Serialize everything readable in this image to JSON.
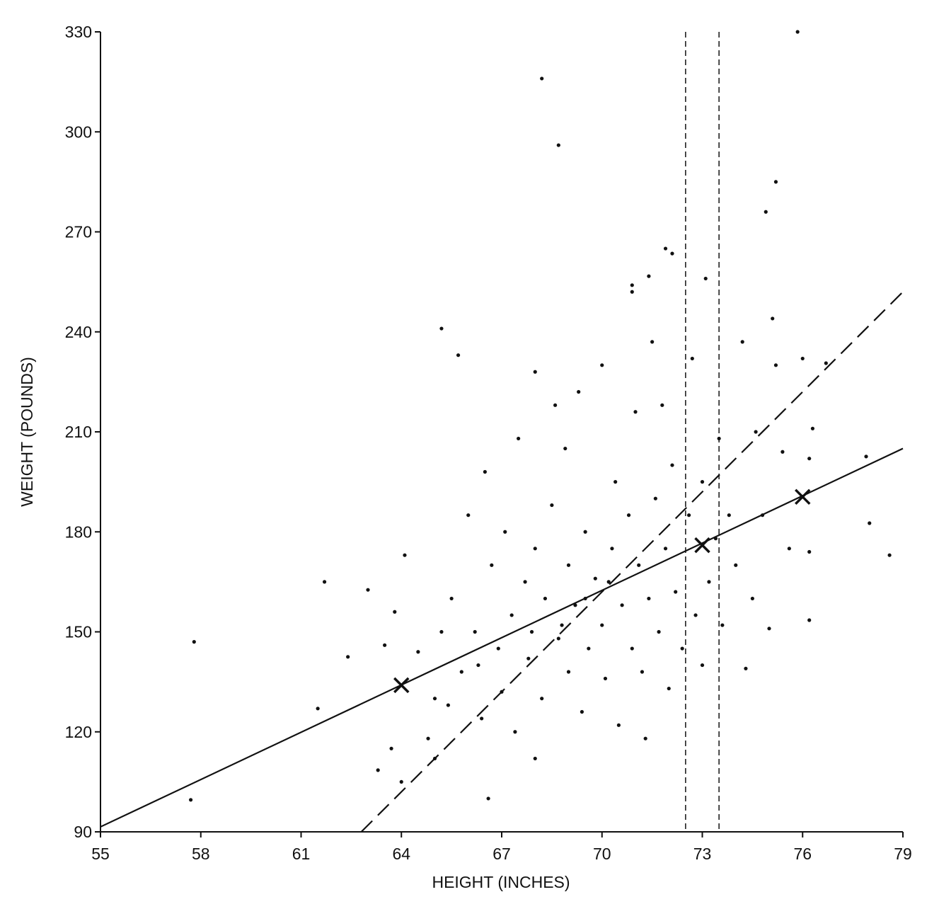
{
  "chart_data": {
    "type": "scatter",
    "xlabel": "HEIGHT (INCHES)",
    "ylabel": "WEIGHT (POUNDS)",
    "xlim": [
      55,
      79
    ],
    "ylim": [
      90,
      330
    ],
    "xticks": [
      55,
      58,
      61,
      64,
      67,
      70,
      73,
      76,
      79
    ],
    "yticks": [
      90,
      120,
      150,
      180,
      210,
      240,
      270,
      300,
      330
    ],
    "color": "#111111",
    "series": [
      {
        "color": "#111111",
        "x": [
          75.85,
          68.2,
          68.7,
          75.2,
          74.9,
          61.7,
          57.8,
          57.7,
          61.5,
          62.4,
          63.0,
          65.2,
          65.7,
          71.9,
          72.1,
          73.1,
          71.4,
          70.9,
          70.9,
          75.1,
          78.6,
          78.0,
          77.9,
          76.7,
          66.6,
          63.3,
          68.0,
          71.3,
          76.2,
          76.2,
          63.5,
          63.8,
          64.1,
          64.5,
          65,
          65.2,
          65.5,
          65.8,
          66,
          66.2,
          66.4,
          66.5,
          66.7,
          66.9,
          67,
          67.1,
          67.3,
          67.4,
          67.5,
          67.7,
          67.8,
          68,
          68,
          68.2,
          68.3,
          68.5,
          68.6,
          68.7,
          68.9,
          69,
          69,
          69.2,
          69.3,
          69.4,
          69.5,
          69.6,
          69.8,
          70,
          70,
          70.1,
          70.3,
          70.4,
          70.5,
          70.6,
          70.8,
          70.9,
          71,
          71.1,
          71.2,
          71.4,
          71.5,
          71.6,
          71.7,
          71.8,
          71.9,
          72,
          72.1,
          72.2,
          72.4,
          72.6,
          72.7,
          72.8,
          73,
          73,
          73.2,
          73.4,
          73.5,
          73.6,
          73.8,
          74,
          74.2,
          74.3,
          74.5,
          74.6,
          74.8,
          75,
          75.2,
          75.4,
          75.6,
          76,
          76.2,
          76.3,
          69.5,
          70.2,
          68.8,
          67.9,
          66.3,
          65.4,
          64.8,
          63.7,
          64,
          65
        ],
        "values": [
          330,
          316,
          296,
          285,
          276,
          165,
          147,
          99.6,
          127,
          142.5,
          162.6,
          241,
          233,
          265,
          263.5,
          256,
          256.7,
          254,
          252,
          244,
          173,
          182.6,
          202.6,
          230.6,
          100,
          108.5,
          112,
          118,
          153.5,
          174,
          146,
          156,
          173,
          144,
          130,
          150,
          160,
          138,
          185,
          150,
          124,
          198,
          170,
          145,
          132,
          180,
          155,
          120,
          208,
          165,
          142,
          228,
          175,
          130,
          160,
          188,
          218,
          148,
          205,
          170,
          138,
          158,
          222,
          126,
          180,
          145,
          166,
          230,
          152,
          136,
          175,
          195,
          122,
          158,
          185,
          145,
          216,
          170,
          138,
          160,
          237,
          190,
          150,
          218,
          175,
          133,
          200,
          162,
          145,
          185,
          232,
          155,
          140,
          195,
          165,
          178,
          208,
          152,
          185,
          170,
          237,
          139,
          160,
          210,
          185,
          151,
          230,
          204,
          175,
          232,
          202,
          211,
          160,
          165,
          152,
          150,
          140,
          128,
          118,
          115,
          105,
          112
        ]
      }
    ],
    "lines": [
      {
        "style": "solid",
        "x": [
          55,
          79
        ],
        "values": [
          91.5,
          205
        ]
      },
      {
        "style": "dashed",
        "x": [
          62.8,
          79
        ],
        "values": [
          90,
          252
        ]
      }
    ],
    "vlines": [
      72.5,
      73.5
    ],
    "markers": {
      "x": [
        64,
        73,
        76
      ],
      "values": [
        134,
        176,
        190.5
      ]
    }
  }
}
